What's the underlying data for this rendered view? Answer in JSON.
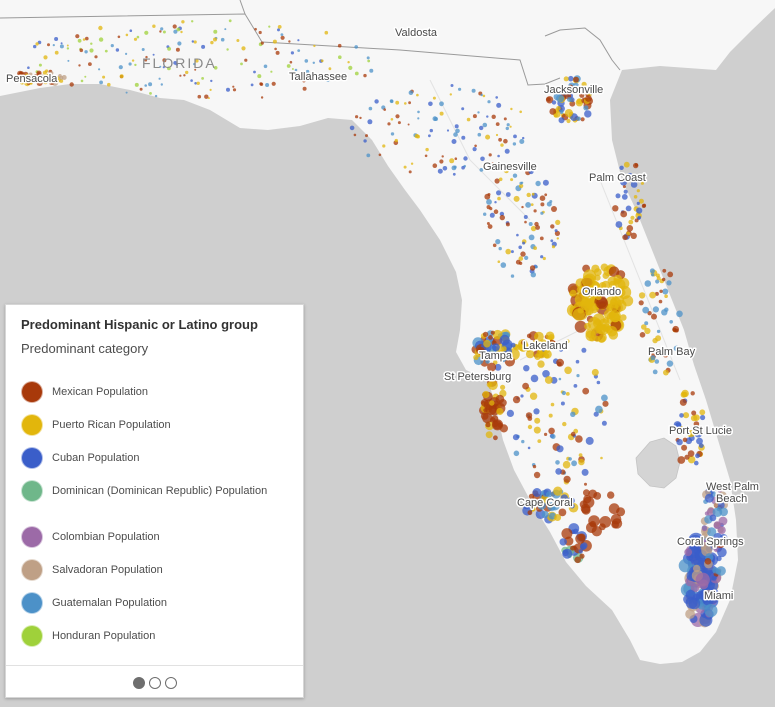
{
  "map": {
    "state_label": "FLORIDA",
    "cities": [
      {
        "id": "pensacola",
        "name": "Pensacola"
      },
      {
        "id": "tallahassee",
        "name": "Tallahassee"
      },
      {
        "id": "valdosta",
        "name": "Valdosta"
      },
      {
        "id": "jacksonville",
        "name": "Jacksonville"
      },
      {
        "id": "gainesville",
        "name": "Gainesville"
      },
      {
        "id": "palm-coast",
        "name": "Palm Coast"
      },
      {
        "id": "orlando",
        "name": "Orlando"
      },
      {
        "id": "lakeland",
        "name": "Lakeland"
      },
      {
        "id": "tampa",
        "name": "Tampa"
      },
      {
        "id": "st-petersburg",
        "name": "St Petersburg"
      },
      {
        "id": "palm-bay",
        "name": "Palm Bay"
      },
      {
        "id": "port-st-lucie",
        "name": "Port St Lucie"
      },
      {
        "id": "west-palm-beach-1",
        "name": "West Palm"
      },
      {
        "id": "west-palm-beach-2",
        "name": "Beach"
      },
      {
        "id": "cape-coral",
        "name": "Cape Coral"
      },
      {
        "id": "coral-springs",
        "name": "Coral Springs"
      },
      {
        "id": "miami",
        "name": "Miami"
      }
    ],
    "colors": {
      "water": "#cfcfcf",
      "land": "#f7f7f7",
      "lake": "#d4d4d4",
      "border": "#9a9a9a"
    }
  },
  "legend": {
    "title": "Predominant Hispanic or Latino group",
    "subtitle": "Predominant category",
    "items": [
      {
        "label": "Mexican Population",
        "color": "#a8390a"
      },
      {
        "label": "Puerto Rican Population",
        "color": "#e2b60c"
      },
      {
        "label": "Cuban Population",
        "color": "#3a5ec9"
      },
      {
        "label": "Dominican (Dominican Republic) Population",
        "color": "#6fb78a"
      },
      {
        "label": "Colombian Population",
        "color": "#9c6aa7"
      },
      {
        "label": "Salvadoran Population",
        "color": "#bfa086"
      },
      {
        "label": "Guatemalan Population",
        "color": "#4c91c8"
      },
      {
        "label": "Honduran Population",
        "color": "#9fd13a"
      }
    ],
    "pager": {
      "current": 1,
      "total": 3
    }
  }
}
